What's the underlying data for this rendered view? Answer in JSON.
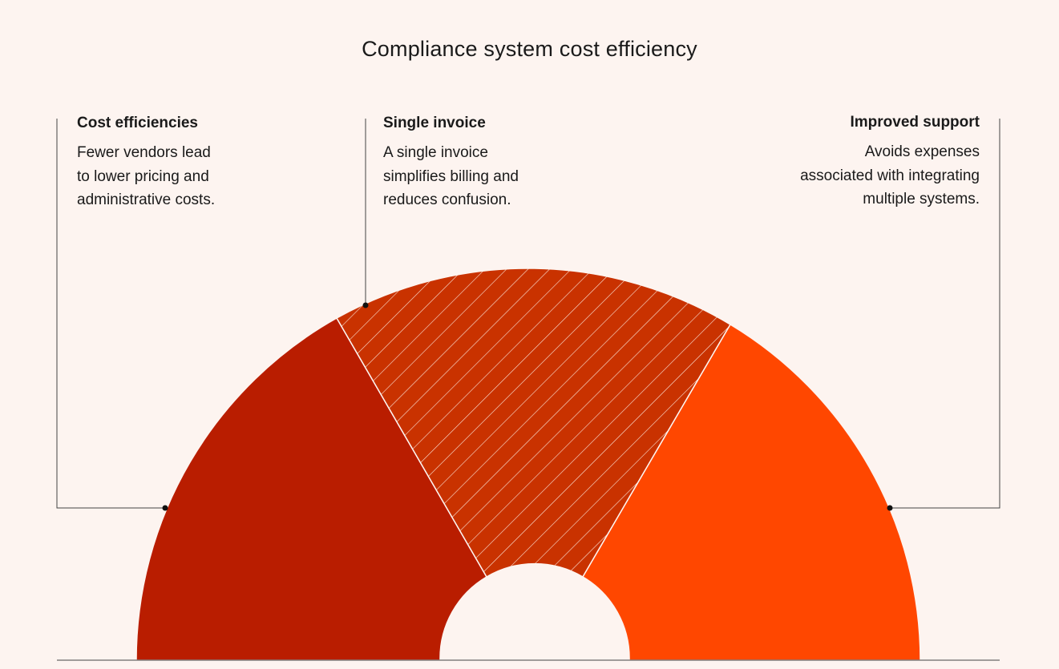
{
  "title": "Compliance system cost efficiency",
  "colors": {
    "background": "#fdf4f0",
    "segment_left": "#b91d00",
    "segment_middle": "#c93200",
    "segment_right": "#ff4700",
    "leader_line": "#444444",
    "hatch": "#fbe3d8"
  },
  "callouts": [
    {
      "title": "Cost efficiencies",
      "body": "Fewer vendors lead\nto lower pricing and\nadministrative costs."
    },
    {
      "title": "Single invoice",
      "body": "A single invoice\nsimplifies billing and\nreduces confusion."
    },
    {
      "title": "Improved support",
      "body": "Avoids expenses\nassociated with integrating\nmultiple systems."
    }
  ]
}
